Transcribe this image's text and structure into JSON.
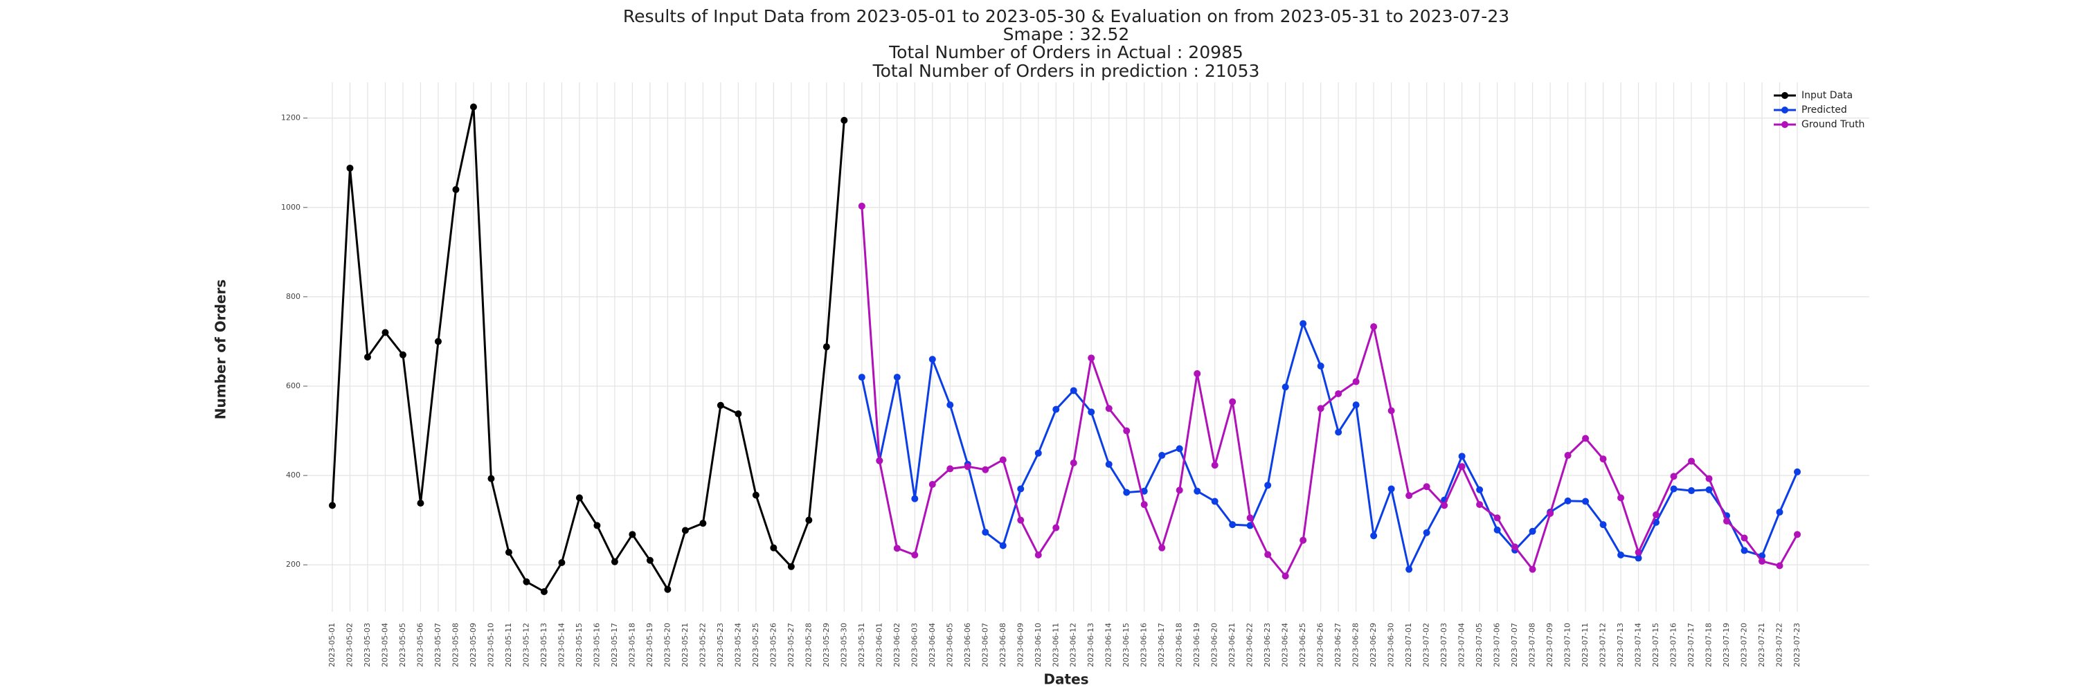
{
  "chart_data": {
    "type": "line",
    "title": [
      "Results of Input Data from 2023-05-01 to 2023-05-30 & Evaluation on from 2023-05-31 to 2023-07-23",
      "Smape : 32.52",
      "Total Number of Orders in Actual : 20985",
      "Total Number of Orders in prediction : 21053"
    ],
    "x_label": "Dates",
    "y_label": "Number of Orders",
    "categories": [
      "2023-05-01",
      "2023-05-02",
      "2023-05-03",
      "2023-05-04",
      "2023-05-05",
      "2023-05-06",
      "2023-05-07",
      "2023-05-08",
      "2023-05-09",
      "2023-05-10",
      "2023-05-11",
      "2023-05-12",
      "2023-05-13",
      "2023-05-14",
      "2023-05-15",
      "2023-05-16",
      "2023-05-17",
      "2023-05-18",
      "2023-05-19",
      "2023-05-20",
      "2023-05-21",
      "2023-05-22",
      "2023-05-23",
      "2023-05-24",
      "2023-05-25",
      "2023-05-26",
      "2023-05-27",
      "2023-05-28",
      "2023-05-29",
      "2023-05-30",
      "2023-05-31",
      "2023-06-01",
      "2023-06-02",
      "2023-06-03",
      "2023-06-04",
      "2023-06-05",
      "2023-06-06",
      "2023-06-07",
      "2023-06-08",
      "2023-06-09",
      "2023-06-10",
      "2023-06-11",
      "2023-06-12",
      "2023-06-13",
      "2023-06-14",
      "2023-06-15",
      "2023-06-16",
      "2023-06-17",
      "2023-06-18",
      "2023-06-19",
      "2023-06-20",
      "2023-06-21",
      "2023-06-22",
      "2023-06-23",
      "2023-06-24",
      "2023-06-25",
      "2023-06-26",
      "2023-06-27",
      "2023-06-28",
      "2023-06-29",
      "2023-06-30",
      "2023-07-01",
      "2023-07-02",
      "2023-07-03",
      "2023-07-04",
      "2023-07-05",
      "2023-07-06",
      "2023-07-07",
      "2023-07-08",
      "2023-07-09",
      "2023-07-10",
      "2023-07-11",
      "2023-07-12",
      "2023-07-13",
      "2023-07-14",
      "2023-07-15",
      "2023-07-16",
      "2023-07-17",
      "2023-07-18",
      "2023-07-19",
      "2023-07-20",
      "2023-07-21",
      "2023-07-22",
      "2023-07-23"
    ],
    "series": [
      {
        "name": "Input Data",
        "color": "#000000",
        "values": [
          333,
          1088,
          665,
          720,
          670,
          338,
          700,
          1040,
          1225,
          393,
          228,
          162,
          140,
          205,
          350,
          288,
          207,
          268,
          210,
          145,
          277,
          293,
          557,
          538,
          356,
          238,
          196,
          300,
          688,
          1195,
          null,
          null,
          null,
          null,
          null,
          null,
          null,
          null,
          null,
          null,
          null,
          null,
          null,
          null,
          null,
          null,
          null,
          null,
          null,
          null,
          null,
          null,
          null,
          null,
          null,
          null,
          null,
          null,
          null,
          null,
          null,
          null,
          null,
          null,
          null,
          null,
          null,
          null,
          null,
          null,
          null,
          null,
          null,
          null,
          null,
          null,
          null,
          null,
          null,
          null,
          null,
          null,
          null,
          null
        ]
      },
      {
        "name": "Predicted",
        "color": "#0b3ee6",
        "values": [
          null,
          null,
          null,
          null,
          null,
          null,
          null,
          null,
          null,
          null,
          null,
          null,
          null,
          null,
          null,
          null,
          null,
          null,
          null,
          null,
          null,
          null,
          null,
          null,
          null,
          null,
          null,
          null,
          null,
          null,
          620,
          433,
          620,
          348,
          660,
          558,
          425,
          273,
          243,
          370,
          450,
          548,
          590,
          542,
          425,
          362,
          365,
          445,
          460,
          365,
          342,
          290,
          288,
          378,
          598,
          740,
          645,
          497,
          558,
          265,
          370,
          190,
          272,
          345,
          443,
          368,
          278,
          233,
          275,
          318,
          343,
          342,
          290,
          222,
          215,
          295,
          370,
          366,
          368,
          310,
          232,
          220,
          318,
          408
        ]
      },
      {
        "name": "Ground Truth",
        "color": "#b011b8",
        "values": [
          null,
          null,
          null,
          null,
          null,
          null,
          null,
          null,
          null,
          null,
          null,
          null,
          null,
          null,
          null,
          null,
          null,
          null,
          null,
          null,
          null,
          null,
          null,
          null,
          null,
          null,
          null,
          null,
          null,
          null,
          1003,
          433,
          237,
          222,
          380,
          415,
          420,
          413,
          435,
          300,
          222,
          283,
          428,
          663,
          550,
          500,
          335,
          238,
          367,
          628,
          423,
          565,
          305,
          223,
          175,
          255,
          550,
          583,
          610,
          733,
          545,
          355,
          375,
          333,
          420,
          335,
          305,
          240,
          190,
          315,
          445,
          483,
          437,
          350,
          228,
          312,
          398,
          432,
          393,
          298,
          260,
          208,
          198,
          268
        ]
      }
    ],
    "ylim": [
      95,
      1280
    ],
    "yticks": [
      200,
      400,
      600,
      800,
      1000,
      1200
    ],
    "grid": true,
    "legend": "upper right"
  }
}
